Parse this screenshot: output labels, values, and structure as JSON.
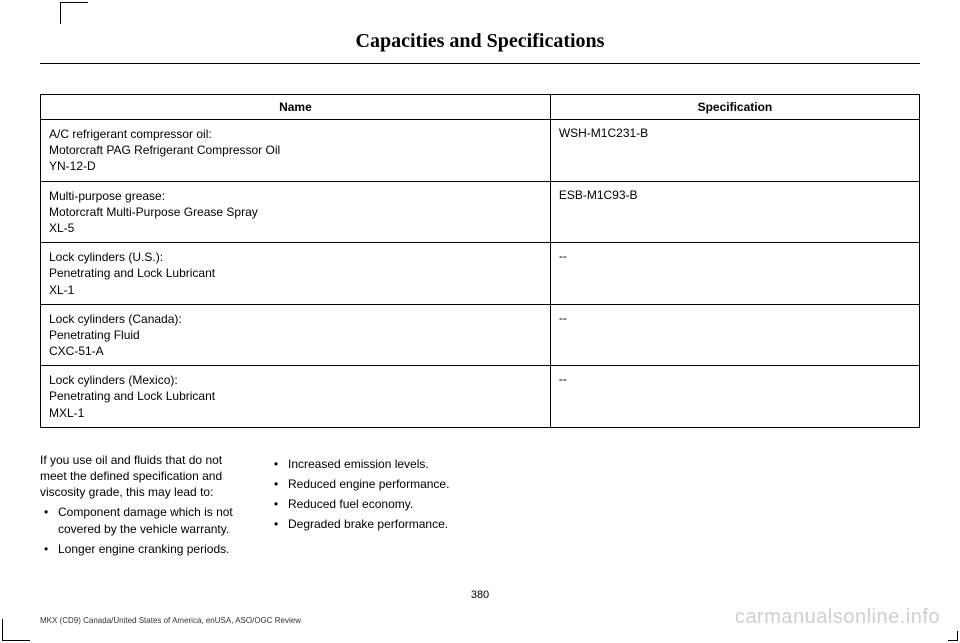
{
  "title": "Capacities and Specifications",
  "table": {
    "headers": {
      "name": "Name",
      "spec": "Specification"
    },
    "rows": [
      {
        "l1": "A/C refrigerant compressor oil:",
        "l2": "Motorcraft PAG Refrigerant Compressor Oil",
        "l3": "YN-12-D",
        "spec": "WSH-M1C231-B"
      },
      {
        "l1": "Multi-purpose grease:",
        "l2": "Motorcraft Multi-Purpose Grease Spray",
        "l3": "XL-5",
        "spec": "ESB-M1C93-B"
      },
      {
        "l1": "Lock cylinders (U.S.):",
        "l2": "Penetrating and Lock Lubricant",
        "l3": "XL-1",
        "spec": "--"
      },
      {
        "l1": "Lock cylinders (Canada):",
        "l2": "Penetrating Fluid",
        "l3": "CXC-51-A",
        "spec": "--"
      },
      {
        "l1": "Lock cylinders (Mexico):",
        "l2": "Penetrating and Lock Lubricant",
        "l3": "MXL-1",
        "spec": "--"
      }
    ]
  },
  "body": {
    "intro": "If you use oil and fluids that do not meet the defined specification and viscosity grade, this may lead to:",
    "col1": [
      "Component damage which is not covered by the vehicle warranty.",
      "Longer engine cranking periods."
    ],
    "col2": [
      "Increased emission levels.",
      "Reduced engine performance.",
      "Reduced fuel economy.",
      "Degraded brake performance."
    ]
  },
  "page_number": "380",
  "footer": "MKX (CD9) Canada/United States of America, enUSA, ASO/OGC Review",
  "watermark": "carmanualsonline.info"
}
